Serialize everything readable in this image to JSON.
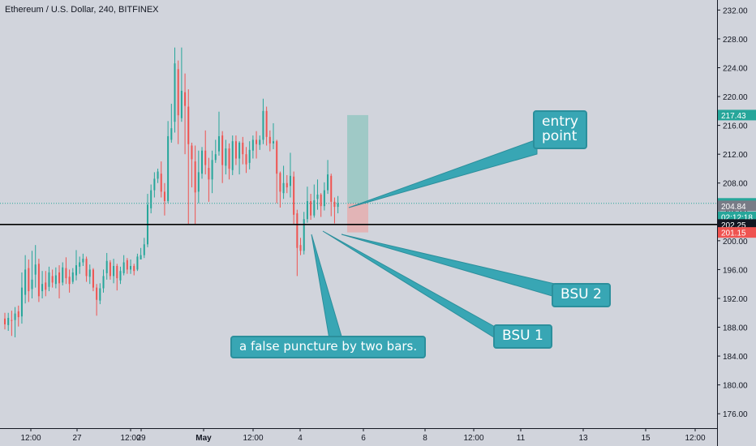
{
  "header": {
    "title": "Ethereum / U.S. Dollar, 240, BITFINEX"
  },
  "colors": {
    "background": "#d1d4dc",
    "up": "#26a69a",
    "down": "#ef5350",
    "callout": "#38a6b4",
    "callout_border": "#2b8f9c",
    "text": "#131722"
  },
  "annotations": {
    "entry": "entry\npoint",
    "bsu1": "BSU 1",
    "bsu2": "BSU 2",
    "false_puncture": "a false puncture by two bars."
  },
  "chart_data": {
    "type": "candlestick",
    "title": "Ethereum / U.S. Dollar, 240, BITFINEX",
    "ylim": [
      174,
      233
    ],
    "y_ticks": [
      176,
      180,
      184,
      188,
      192,
      196,
      200,
      204,
      208,
      212,
      216,
      220,
      224,
      228,
      232
    ],
    "x_tick_labels": [
      "12:00",
      "27",
      "12:00",
      "29",
      "May",
      "12:00",
      "4",
      "6",
      "8",
      "12:00",
      "11",
      "13",
      "15",
      "12:00"
    ],
    "price_labels": [
      {
        "value": 217.43,
        "text": "217.43",
        "color": "#26a69a"
      },
      {
        "value": 205.18,
        "text": "205.18",
        "color": "#26a69a"
      },
      {
        "value": 203.3,
        "text": "02:12:18",
        "color": "#26a69a"
      },
      {
        "value": 204.84,
        "text": "204.84",
        "color": "#787b86"
      },
      {
        "value": 202.25,
        "text": "202.25",
        "color": "#131722"
      },
      {
        "value": 201.15,
        "text": "201.15",
        "color": "#ef5350"
      }
    ],
    "horizontal_level": 202.25,
    "current_price": 205.18,
    "position": {
      "entry": 205.18,
      "target": 217.43,
      "stop": 201.15
    },
    "candles": [
      [
        189.2,
        188.4,
        190.0,
        187.7
      ],
      [
        188.3,
        189.3,
        190.0,
        187.5
      ],
      [
        189.0,
        188.9,
        190.3,
        186.8
      ],
      [
        189.0,
        189.9,
        190.8,
        186.6
      ],
      [
        190.2,
        189.4,
        191.0,
        188.1
      ],
      [
        189.5,
        193.5,
        195.6,
        188.5
      ],
      [
        192.5,
        196.0,
        198.0,
        191.3
      ],
      [
        196.2,
        193.0,
        197.4,
        191.5
      ],
      [
        193.3,
        194.6,
        198.6,
        192.0
      ],
      [
        195.3,
        196.7,
        199.4,
        193.5
      ],
      [
        196.8,
        192.3,
        197.5,
        191.5
      ],
      [
        193.0,
        194.0,
        195.8,
        192.0
      ],
      [
        194.2,
        193.2,
        195.8,
        192.3
      ],
      [
        193.6,
        195.6,
        196.4,
        193.0
      ],
      [
        195.1,
        194.2,
        196.0,
        193.5
      ],
      [
        194.0,
        195.2,
        196.3,
        193.4
      ],
      [
        195.6,
        194.1,
        196.6,
        192.0
      ],
      [
        194.2,
        196.3,
        197.0,
        193.8
      ],
      [
        196.2,
        194.8,
        197.7,
        194.0
      ],
      [
        195.0,
        194.0,
        196.0,
        192.8
      ],
      [
        194.3,
        195.6,
        196.2,
        194.0
      ],
      [
        195.2,
        196.6,
        198.7,
        194.5
      ],
      [
        196.4,
        197.0,
        197.8,
        195.4
      ],
      [
        197.0,
        197.5,
        198.2,
        196.5
      ],
      [
        197.5,
        195.1,
        197.8,
        194.3
      ],
      [
        195.0,
        196.0,
        196.7,
        194.0
      ],
      [
        196.0,
        193.5,
        196.2,
        193.0
      ],
      [
        193.5,
        191.8,
        194.0,
        189.6
      ],
      [
        191.7,
        193.4,
        194.1,
        191.2
      ],
      [
        193.4,
        195.1,
        196.0,
        192.8
      ],
      [
        195.5,
        197.2,
        198.3,
        194.6
      ],
      [
        197.0,
        195.1,
        197.3,
        194.6
      ],
      [
        195.1,
        196.5,
        197.5,
        194.1
      ],
      [
        196.5,
        194.8,
        196.8,
        193.1
      ],
      [
        194.5,
        195.8,
        196.4,
        194.0
      ],
      [
        195.5,
        197.0,
        198.0,
        195.2
      ],
      [
        197.3,
        196.0,
        197.6,
        195.4
      ],
      [
        196.0,
        196.5,
        197.4,
        195.4
      ],
      [
        196.5,
        195.8,
        196.8,
        195.2
      ],
      [
        196.0,
        197.8,
        198.2,
        195.8
      ],
      [
        197.4,
        198.0,
        199.0,
        197.4
      ],
      [
        198.0,
        199.5,
        200.4,
        197.6
      ],
      [
        199.5,
        205.0,
        206.5,
        199.1
      ],
      [
        204.5,
        207.0,
        207.8,
        203.8
      ],
      [
        207.0,
        208.6,
        209.5,
        206.0
      ],
      [
        208.6,
        209.6,
        210.0,
        208.0
      ],
      [
        209.3,
        206.8,
        211.0,
        206.0
      ],
      [
        206.8,
        205.5,
        208.0,
        203.5
      ],
      [
        205.5,
        214.5,
        216.6,
        205.2
      ],
      [
        214.0,
        215.6,
        219.0,
        213.6
      ],
      [
        216.5,
        224.6,
        226.8,
        215.0
      ],
      [
        223.8,
        217.4,
        225.0,
        213.4
      ],
      [
        217.0,
        220.8,
        226.8,
        216.5
      ],
      [
        220.6,
        218.7,
        223.2,
        212.0
      ],
      [
        218.6,
        213.4,
        221.0,
        202.2
      ],
      [
        213.2,
        211.3,
        213.6,
        207.4
      ],
      [
        211.0,
        206.7,
        213.2,
        202.3
      ],
      [
        206.8,
        209.5,
        212.5,
        205.2
      ],
      [
        209.3,
        212.5,
        213.0,
        208.6
      ],
      [
        212.5,
        210.5,
        215.3,
        209.2
      ],
      [
        210.1,
        208.5,
        211.5,
        205.4
      ],
      [
        208.5,
        211.2,
        212.5,
        206.6
      ],
      [
        211.2,
        212.0,
        214.0,
        210.8
      ],
      [
        212.4,
        214.5,
        217.9,
        211.8
      ],
      [
        214.6,
        210.5,
        215.2,
        208.0
      ],
      [
        210.4,
        212.8,
        214.0,
        209.2
      ],
      [
        212.8,
        210.0,
        213.5,
        208.5
      ],
      [
        209.8,
        213.8,
        214.6,
        209.1
      ],
      [
        213.8,
        211.4,
        214.6,
        210.5
      ],
      [
        211.4,
        213.6,
        213.8,
        209.2
      ],
      [
        213.6,
        212.0,
        214.4,
        210.6
      ],
      [
        212.0,
        210.6,
        213.0,
        209.4
      ],
      [
        210.8,
        212.6,
        213.8,
        209.9
      ],
      [
        212.5,
        214.0,
        214.6,
        211.4
      ],
      [
        214.0,
        213.4,
        215.2,
        211.4
      ],
      [
        213.3,
        214.0,
        214.6,
        212.6
      ],
      [
        214.0,
        218.0,
        219.7,
        213.4
      ],
      [
        218.0,
        214.4,
        218.6,
        213.2
      ],
      [
        214.4,
        213.5,
        215.3,
        212.4
      ],
      [
        213.5,
        213.8,
        216.3,
        212.7
      ],
      [
        213.8,
        209.3,
        214.0,
        205.2
      ],
      [
        209.4,
        206.8,
        209.6,
        204.6
      ],
      [
        206.6,
        208.0,
        210.4,
        205.8
      ],
      [
        208.0,
        207.4,
        209.1,
        206.6
      ],
      [
        207.6,
        209.0,
        212.2,
        206.0
      ],
      [
        208.9,
        203.6,
        209.6,
        202.3
      ],
      [
        203.8,
        199.0,
        204.3,
        195.1
      ],
      [
        199.4,
        198.6,
        200.4,
        198.0
      ],
      [
        198.6,
        203.0,
        204.0,
        198.1
      ],
      [
        203.0,
        205.5,
        207.5,
        202.5
      ],
      [
        205.5,
        203.5,
        206.5,
        202.9
      ],
      [
        203.5,
        205.6,
        207.8,
        203.2
      ],
      [
        205.8,
        206.4,
        208.5,
        204.3
      ],
      [
        206.4,
        204.8,
        206.6,
        203.3
      ],
      [
        204.8,
        207.0,
        208.1,
        204.2
      ],
      [
        207.0,
        209.2,
        211.2,
        206.5
      ],
      [
        209.0,
        205.4,
        209.3,
        203.4
      ],
      [
        205.4,
        204.7,
        206.0,
        202.4
      ],
      [
        204.7,
        205.2,
        206.2,
        203.8
      ]
    ]
  }
}
